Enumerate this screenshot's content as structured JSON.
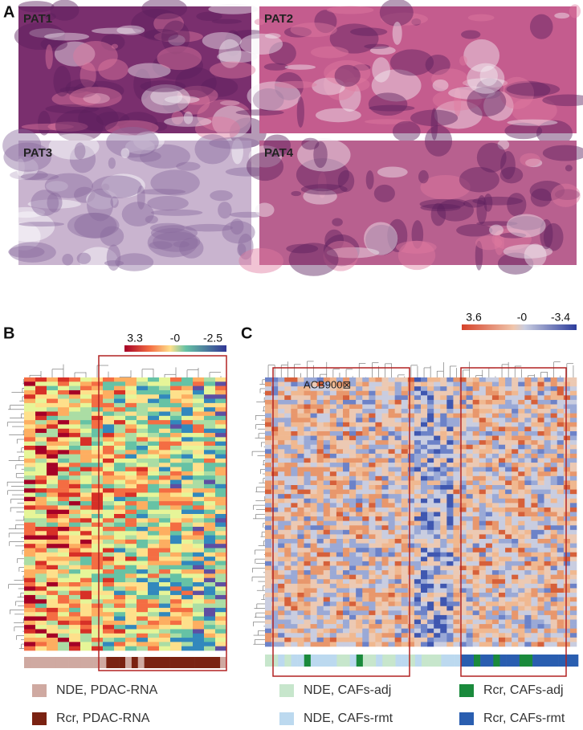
{
  "panels": {
    "A": {
      "label": "A",
      "images": [
        "PAT1",
        "PAT2",
        "PAT3",
        "PAT4"
      ]
    },
    "B": {
      "label": "B",
      "scale": [
        "3.3",
        "-0",
        "-2.5"
      ],
      "legend": [
        {
          "name": "NDE, PDAC-RNA",
          "color": "#cfa9a1"
        },
        {
          "name": "Rcr, PDAC-RNA",
          "color": "#7a2212"
        }
      ]
    },
    "C": {
      "label": "C",
      "scale": [
        "3.6",
        "-0",
        "-3.4"
      ],
      "annotation": "ACB900⊠",
      "legend": [
        {
          "name": "NDE, CAFs-adj",
          "color": "#c7e6cc"
        },
        {
          "name": "NDE, CAFs-rmt",
          "color": "#bcd9ef"
        },
        {
          "name": "Rcr, CAFs-adj",
          "color": "#1a8a3c"
        },
        {
          "name": "Rcr, CAFs-rmt",
          "color": "#2a5eb0"
        }
      ]
    }
  }
}
